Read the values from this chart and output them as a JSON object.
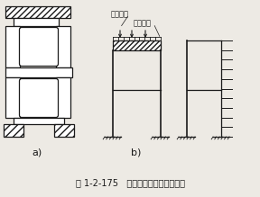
{
  "title": "图 1-2-175   拱上建筑横向按刚架分析",
  "label_a": "a)",
  "label_b": "b)",
  "label_zongliangfanli": "纵梁反力",
  "label_fenbuhezai": "分布荷载",
  "bg_color": "#edeae4",
  "line_color": "#1a1a1a",
  "title_fontsize": 7.0,
  "annotation_fontsize": 6.0
}
